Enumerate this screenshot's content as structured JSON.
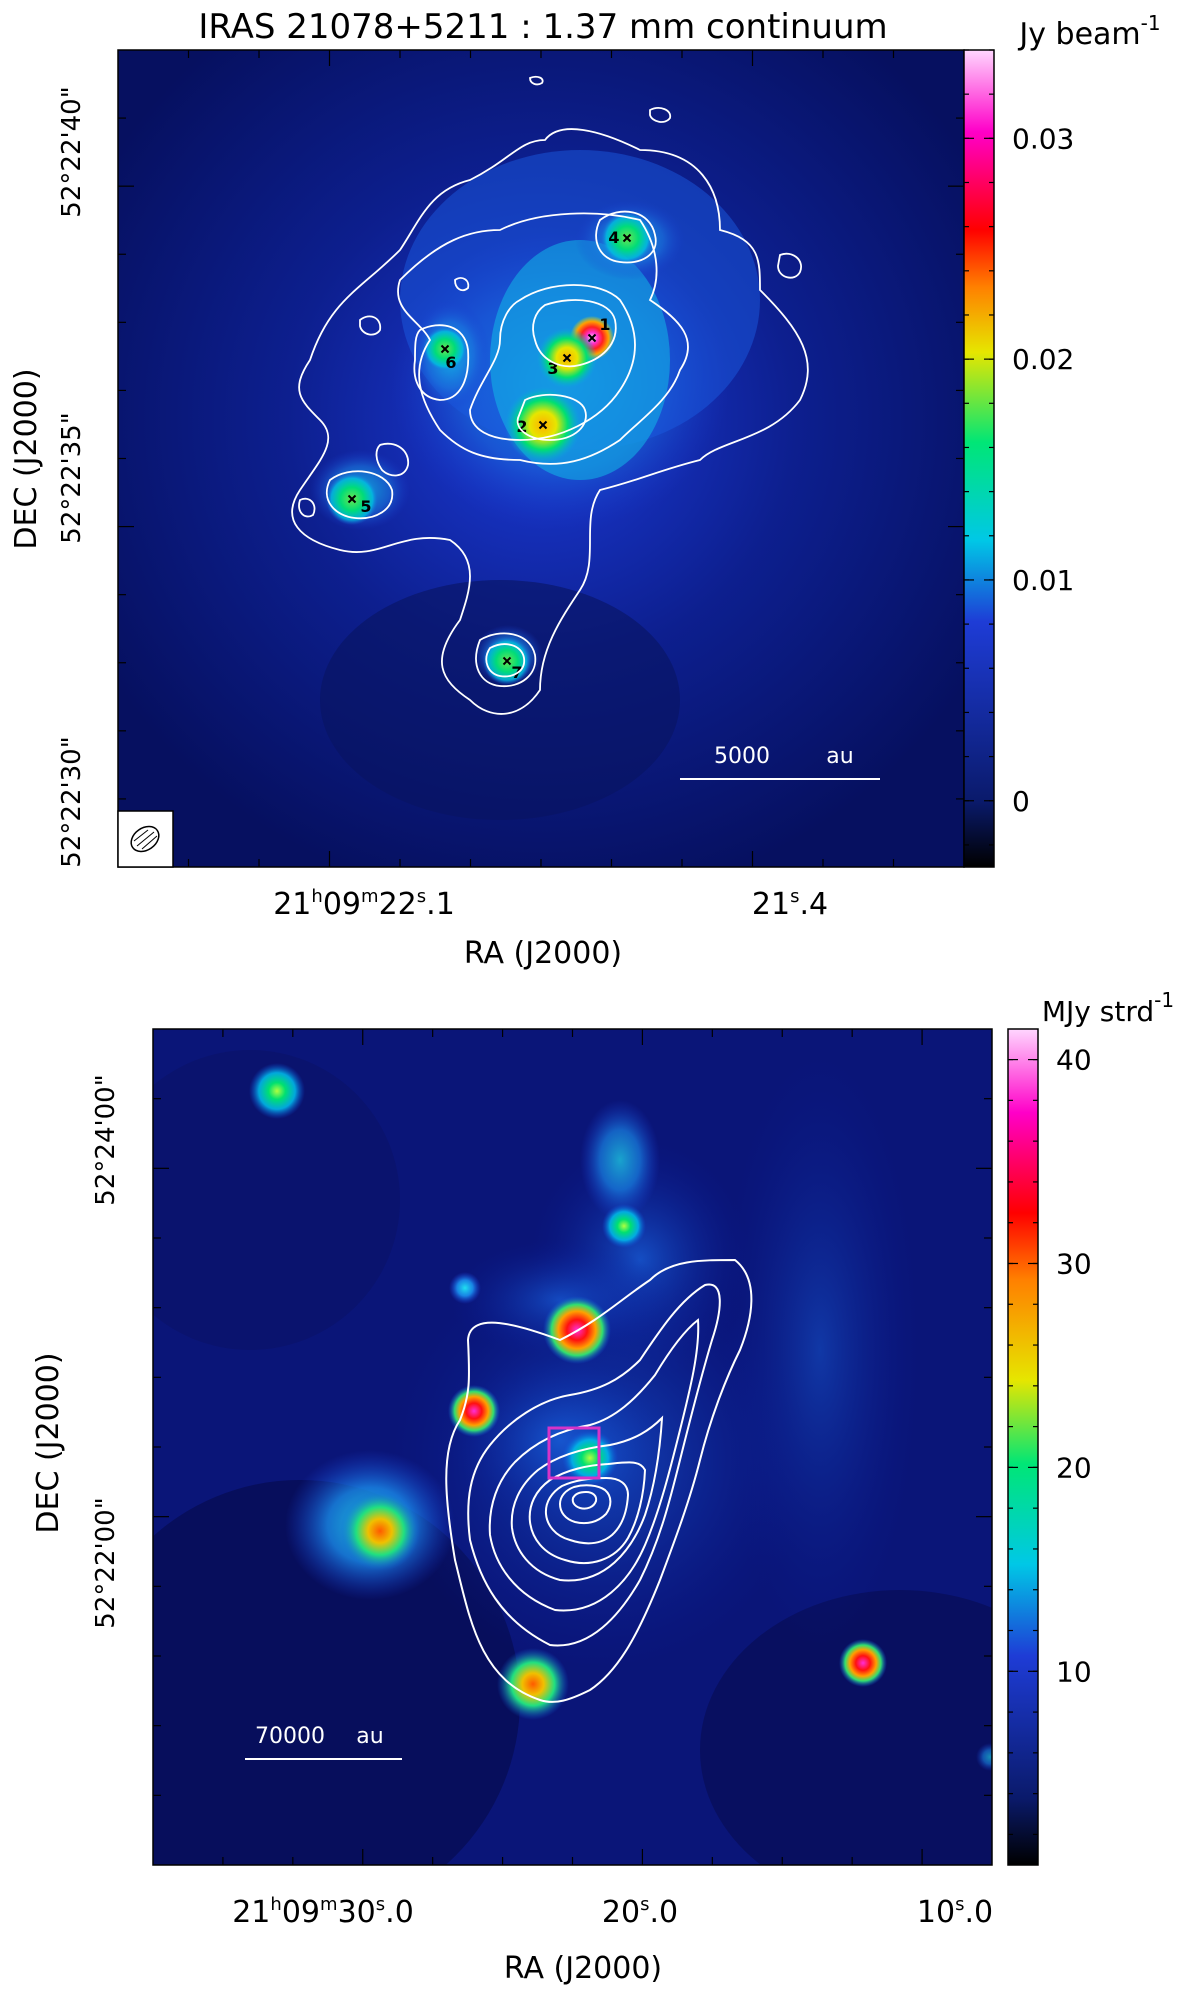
{
  "panels": [
    {
      "id": "top",
      "title": "IRAS 21078+5211 : 1.37 mm continuum",
      "colorbar": {
        "unit_label": "Jy beam",
        "unit_exp": "-1",
        "ticks": [
          {
            "value": 0.03,
            "label": "0.03"
          },
          {
            "value": 0.02,
            "label": "0.02"
          },
          {
            "value": 0.01,
            "label": "0.01"
          },
          {
            "value": 0,
            "label": "0"
          }
        ],
        "range": [
          -0.003,
          0.034
        ]
      },
      "xaxis": {
        "label": "RA (J2000)",
        "ticks": [
          {
            "h": "21",
            "m": "09",
            "s": "22",
            "frac": "1",
            "pos": "21h09m22.1s"
          },
          {
            "h": "",
            "m": "",
            "s": "21",
            "frac": "4",
            "pos": "21.4s"
          }
        ]
      },
      "yaxis": {
        "label": "DEC (J2000)",
        "ticks": [
          "52°22'40\"",
          "52°22'35\"",
          "52°22'30\""
        ]
      },
      "scalebar": {
        "label_value": "5000",
        "label_unit": "au"
      },
      "sources": [
        "1",
        "2",
        "3",
        "4",
        "5",
        "6",
        "7"
      ],
      "beam_icon": "beam-ellipse-icon"
    },
    {
      "id": "bottom",
      "colorbar": {
        "unit_label": "MJy strd",
        "unit_exp": "-1",
        "ticks": [
          {
            "value": 40,
            "label": "40"
          },
          {
            "value": 30,
            "label": "30"
          },
          {
            "value": 20,
            "label": "20"
          },
          {
            "value": 10,
            "label": "10"
          }
        ],
        "range": [
          0.5,
          41.5
        ]
      },
      "xaxis": {
        "label": "RA (J2000)",
        "ticks": [
          {
            "h": "21",
            "m": "09",
            "s": "30",
            "frac": "0",
            "pos": "21h09m30.0s"
          },
          {
            "h": "",
            "m": "",
            "s": "20",
            "frac": "0",
            "pos": "20.0s"
          },
          {
            "h": "",
            "m": "",
            "s": "10",
            "frac": "0",
            "pos": "10.0s"
          }
        ]
      },
      "yaxis": {
        "label": "DEC (J2000)",
        "ticks": [
          "52°24'00\"",
          "52°22'00\""
        ]
      },
      "scalebar": {
        "label_value": "70000",
        "label_unit": "au"
      }
    }
  ],
  "colors": {
    "contour": "#ffffff",
    "box": "#d633c8",
    "colormap": [
      "#000000",
      "#0a1a6b",
      "#1e3cd6",
      "#00c8e6",
      "#00e676",
      "#e6e600",
      "#ff8000",
      "#ff0000",
      "#ff00c8",
      "#ffd6ff"
    ]
  },
  "chart_data": [
    {
      "type": "heatmap",
      "title": "IRAS 21078+5211 : 1.37 mm continuum",
      "xlabel": "RA (J2000)",
      "ylabel": "DEC (J2000)",
      "colorbar_label": "Jy beam^-1",
      "colorbar_range": [
        -0.003,
        0.034
      ],
      "colorbar_ticks": [
        0,
        0.01,
        0.02,
        0.03
      ],
      "x_ticks": [
        "21h09m22.1s",
        "21.4s"
      ],
      "y_ticks": [
        "52°22'40\"",
        "52°22'35\"",
        "52°22'30\""
      ],
      "sources": [
        {
          "id": "1",
          "peak": 0.033
        },
        {
          "id": "2",
          "peak": 0.023
        },
        {
          "id": "3",
          "peak": 0.021
        },
        {
          "id": "4",
          "peak": 0.019
        },
        {
          "id": "5",
          "peak": 0.018
        },
        {
          "id": "6",
          "peak": 0.017
        },
        {
          "id": "7",
          "peak": 0.018
        }
      ],
      "scalebar": "5000 au"
    },
    {
      "type": "heatmap",
      "xlabel": "RA (J2000)",
      "ylabel": "DEC (J2000)",
      "colorbar_label": "MJy strd^-1",
      "colorbar_range": [
        0.5,
        41.5
      ],
      "colorbar_ticks": [
        10,
        20,
        30,
        40
      ],
      "x_ticks": [
        "21h09m30.0s",
        "20.0s",
        "10.0s"
      ],
      "y_ticks": [
        "52°24'00\"",
        "52°22'00\""
      ],
      "scalebar": "70000 au"
    }
  ]
}
